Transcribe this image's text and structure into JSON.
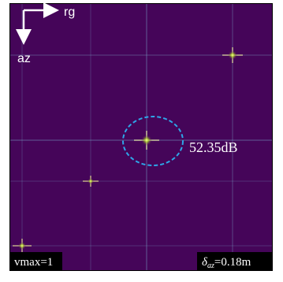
{
  "axes": {
    "range": "rg",
    "azimuth": "az"
  },
  "annotation": {
    "peak": "52.35dB"
  },
  "footer": {
    "left": "vmax=1",
    "right": {
      "symbol": "δ",
      "subscript": "az",
      "value": "=0.18m"
    }
  }
}
